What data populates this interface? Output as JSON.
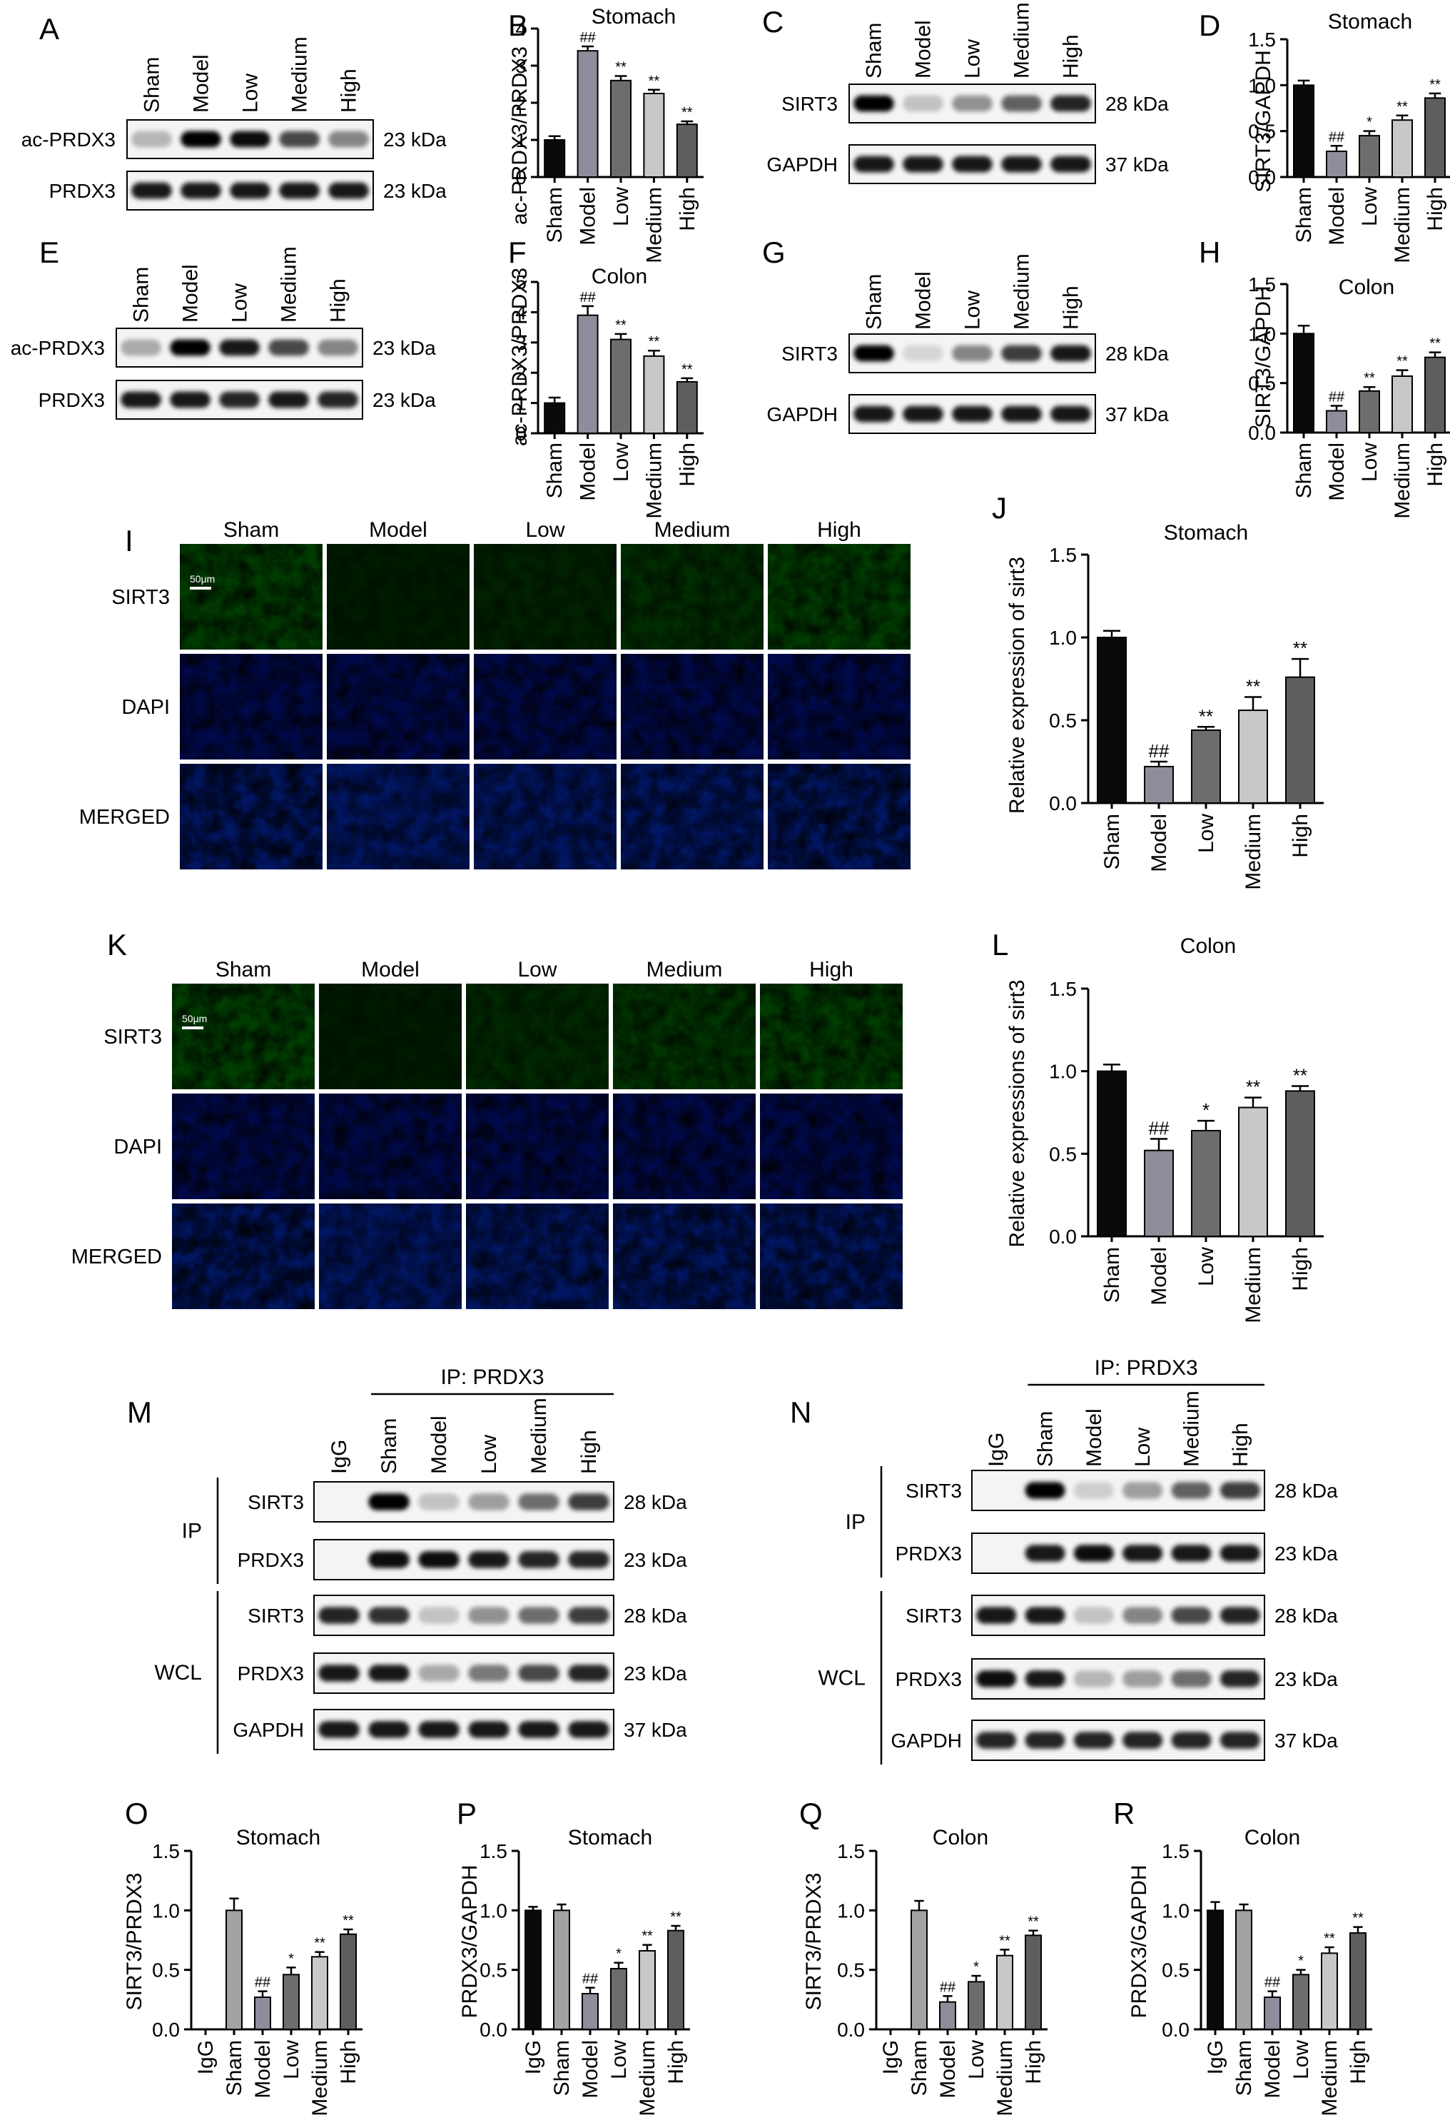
{
  "panel_letters": [
    "A",
    "B",
    "C",
    "D",
    "E",
    "F",
    "G",
    "H",
    "I",
    "J",
    "K",
    "L",
    "M",
    "N",
    "O",
    "P",
    "Q",
    "R"
  ],
  "group_labels": [
    "Sham",
    "Model",
    "Low",
    "Medium",
    "High"
  ],
  "ip_group_labels": [
    "IgG",
    "Sham",
    "Model",
    "Low",
    "Medium",
    "High"
  ],
  "colors": {
    "bar_fills": [
      "#0a0a0a",
      "#8d8d9b",
      "#6d6d6d",
      "#c8c8c8",
      "#5e5e5e"
    ],
    "bar_fills_ip": [
      "#0a0a0a",
      "#a2a2a2",
      "#8d8d9b",
      "#6d6d6d",
      "#c8c8c8",
      "#5e5e5e"
    ],
    "if_green": "#1f6b1a",
    "if_blue": "#1024a8"
  },
  "blots": {
    "A": {
      "rows": [
        {
          "label": "ac-PRDX3",
          "kda": "23 kDa",
          "intensities": [
            0.25,
            1,
            0.95,
            0.7,
            0.45
          ]
        },
        {
          "label": "PRDX3",
          "kda": "23 kDa",
          "intensities": [
            0.9,
            0.9,
            0.9,
            0.9,
            0.9
          ]
        }
      ]
    },
    "C": {
      "rows": [
        {
          "label": "SIRT3",
          "kda": "28 kDa",
          "intensities": [
            1,
            0.2,
            0.4,
            0.6,
            0.85
          ]
        },
        {
          "label": "GAPDH",
          "kda": "37 kDa",
          "intensities": [
            0.9,
            0.9,
            0.9,
            0.9,
            0.9
          ]
        }
      ]
    },
    "E": {
      "rows": [
        {
          "label": "ac-PRDX3",
          "kda": "23 kDa",
          "intensities": [
            0.3,
            1,
            0.9,
            0.7,
            0.45
          ]
        },
        {
          "label": "PRDX3",
          "kda": "23 kDa",
          "intensities": [
            0.9,
            0.9,
            0.85,
            0.9,
            0.85
          ]
        }
      ]
    },
    "G": {
      "rows": [
        {
          "label": "SIRT3",
          "kda": "28 kDa",
          "intensities": [
            1,
            0.12,
            0.45,
            0.75,
            0.9
          ]
        },
        {
          "label": "GAPDH",
          "kda": "37 kDa",
          "intensities": [
            0.9,
            0.9,
            0.9,
            0.9,
            0.9
          ]
        }
      ]
    },
    "M": {
      "ip_title": "IP: PRDX3",
      "ip_label": "IP",
      "wcl_label": "WCL",
      "rows": [
        {
          "label": "SIRT3",
          "kda": "28 kDa",
          "intensities": [
            0,
            1,
            0.2,
            0.35,
            0.55,
            0.75
          ]
        },
        {
          "label": "PRDX3",
          "kda": "23 kDa",
          "intensities": [
            0,
            0.95,
            0.95,
            0.9,
            0.85,
            0.85
          ]
        },
        {
          "label": "SIRT3",
          "kda": "28 kDa",
          "intensities": [
            0.85,
            0.8,
            0.2,
            0.4,
            0.55,
            0.75
          ]
        },
        {
          "label": "PRDX3",
          "kda": "23 kDa",
          "intensities": [
            0.9,
            0.9,
            0.3,
            0.5,
            0.7,
            0.85
          ]
        },
        {
          "label": "GAPDH",
          "kda": "37 kDa",
          "intensities": [
            0.9,
            0.9,
            0.9,
            0.9,
            0.9,
            0.9
          ]
        }
      ]
    },
    "N": {
      "ip_title": "IP: PRDX3",
      "ip_label": "IP",
      "wcl_label": "WCL",
      "rows": [
        {
          "label": "SIRT3",
          "kda": "28 kDa",
          "intensities": [
            0,
            1,
            0.15,
            0.35,
            0.6,
            0.75
          ]
        },
        {
          "label": "PRDX3",
          "kda": "23 kDa",
          "intensities": [
            0,
            0.9,
            0.95,
            0.9,
            0.9,
            0.9
          ]
        },
        {
          "label": "SIRT3",
          "kda": "28 kDa",
          "intensities": [
            0.9,
            0.9,
            0.2,
            0.45,
            0.7,
            0.85
          ]
        },
        {
          "label": "PRDX3",
          "kda": "23 kDa",
          "intensities": [
            0.95,
            0.9,
            0.25,
            0.35,
            0.55,
            0.85
          ]
        },
        {
          "label": "GAPDH",
          "kda": "37 kDa",
          "intensities": [
            0.85,
            0.85,
            0.85,
            0.85,
            0.85,
            0.85
          ]
        }
      ]
    }
  },
  "if_panels": {
    "I": {
      "rows": [
        "SIRT3",
        "DAPI",
        "MERGED"
      ],
      "green": [
        0.55,
        0.12,
        0.2,
        0.35,
        0.55
      ],
      "scale": "50μm"
    },
    "K": {
      "rows": [
        "SIRT3",
        "DAPI",
        "MERGED"
      ],
      "green": [
        0.6,
        0.1,
        0.3,
        0.45,
        0.55
      ],
      "scale": "50μm"
    }
  },
  "chart_data": [
    {
      "panel": "B",
      "type": "bar",
      "title": "Stomach",
      "ylabel": "ac-PRDX3/PRDX3",
      "categories": [
        "Sham",
        "Model",
        "Low",
        "Medium",
        "High"
      ],
      "values": [
        1.0,
        3.4,
        2.6,
        2.25,
        1.42
      ],
      "errors": [
        0.1,
        0.12,
        0.12,
        0.1,
        0.08
      ],
      "ylim": [
        0,
        4
      ],
      "yticks": [
        0,
        1,
        2,
        3,
        4
      ],
      "significance": [
        "",
        "##",
        "**",
        "**",
        "**"
      ]
    },
    {
      "panel": "D",
      "type": "bar",
      "title": "Stomach",
      "ylabel": "SIRT3/GAPDH",
      "categories": [
        "Sham",
        "Model",
        "Low",
        "Medium",
        "High"
      ],
      "values": [
        1.0,
        0.28,
        0.45,
        0.62,
        0.86
      ],
      "errors": [
        0.05,
        0.06,
        0.05,
        0.05,
        0.05
      ],
      "ylim": [
        0,
        1.5
      ],
      "yticks": [
        "0.0",
        "0.5",
        "1.0",
        "1.5"
      ],
      "significance": [
        "",
        "##",
        "*",
        "**",
        "**"
      ]
    },
    {
      "panel": "F",
      "type": "bar",
      "title": "Colon",
      "ylabel": "ac-PRDX3/PRDX3",
      "categories": [
        "Sham",
        "Model",
        "Low",
        "Medium",
        "High"
      ],
      "values": [
        1.0,
        3.9,
        3.1,
        2.55,
        1.7
      ],
      "errors": [
        0.18,
        0.3,
        0.18,
        0.18,
        0.12
      ],
      "ylim": [
        0,
        5
      ],
      "yticks": [
        0,
        1,
        2,
        3,
        4,
        5
      ],
      "significance": [
        "",
        "##",
        "**",
        "**",
        "**"
      ]
    },
    {
      "panel": "H",
      "type": "bar",
      "title": "Colon",
      "ylabel": "SIRT3/GAPDH",
      "categories": [
        "Sham",
        "Model",
        "Low",
        "Medium",
        "High"
      ],
      "values": [
        1.0,
        0.22,
        0.42,
        0.57,
        0.76
      ],
      "errors": [
        0.08,
        0.05,
        0.04,
        0.06,
        0.05
      ],
      "ylim": [
        0,
        1.5
      ],
      "yticks": [
        "0.0",
        "0.5",
        "1.0",
        "1.5"
      ],
      "significance": [
        "",
        "##",
        "**",
        "**",
        "**"
      ]
    },
    {
      "panel": "J",
      "type": "bar",
      "title": "Stomach",
      "ylabel": "Relative expression of sirt3",
      "categories": [
        "Sham",
        "Model",
        "Low",
        "Medium",
        "High"
      ],
      "values": [
        1.0,
        0.22,
        0.44,
        0.56,
        0.76
      ],
      "errors": [
        0.04,
        0.03,
        0.02,
        0.08,
        0.11
      ],
      "ylim": [
        0,
        1.5
      ],
      "yticks": [
        "0.0",
        "0.5",
        "1.0",
        "1.5"
      ],
      "significance": [
        "",
        "##",
        "**",
        "**",
        "**"
      ]
    },
    {
      "panel": "L",
      "type": "bar",
      "title": "Colon",
      "ylabel": "Relative expressions of sirt3",
      "categories": [
        "Sham",
        "Model",
        "Low",
        "Medium",
        "High"
      ],
      "values": [
        1.0,
        0.52,
        0.64,
        0.78,
        0.88
      ],
      "errors": [
        0.04,
        0.07,
        0.06,
        0.06,
        0.03
      ],
      "ylim": [
        0,
        1.5
      ],
      "yticks": [
        "0.0",
        "0.5",
        "1.0",
        "1.5"
      ],
      "significance": [
        "",
        "##",
        "*",
        "**",
        "**"
      ]
    },
    {
      "panel": "O",
      "type": "bar",
      "title": "Stomach",
      "ylabel": "SIRT3/PRDX3",
      "categories": [
        "IgG",
        "Sham",
        "Model",
        "Low",
        "Medium",
        "High"
      ],
      "values": [
        0,
        1.0,
        0.27,
        0.46,
        0.61,
        0.8
      ],
      "errors": [
        0,
        0.1,
        0.05,
        0.06,
        0.04,
        0.04
      ],
      "ylim": [
        0,
        1.5
      ],
      "yticks": [
        "0.0",
        "0.5",
        "1.0",
        "1.5"
      ],
      "significance": [
        "",
        "",
        "##",
        "*",
        "**",
        "**"
      ]
    },
    {
      "panel": "P",
      "type": "bar",
      "title": "Stomach",
      "ylabel": "PRDX3/GAPDH",
      "categories": [
        "IgG",
        "Sham",
        "Model",
        "Low",
        "Medium",
        "High"
      ],
      "values": [
        1.0,
        1.0,
        0.3,
        0.51,
        0.66,
        0.83
      ],
      "errors": [
        0.03,
        0.05,
        0.05,
        0.05,
        0.05,
        0.04
      ],
      "ylim": [
        0,
        1.5
      ],
      "yticks": [
        "0.0",
        "0.5",
        "1.0",
        "1.5"
      ],
      "significance": [
        "",
        "",
        "##",
        "*",
        "**",
        "**"
      ]
    },
    {
      "panel": "Q",
      "type": "bar",
      "title": "Colon",
      "ylabel": "SIRT3/PRDX3",
      "categories": [
        "IgG",
        "Sham",
        "Model",
        "Low",
        "Medium",
        "High"
      ],
      "values": [
        0,
        1.0,
        0.23,
        0.4,
        0.62,
        0.79
      ],
      "errors": [
        0,
        0.08,
        0.05,
        0.05,
        0.05,
        0.04
      ],
      "ylim": [
        0,
        1.5
      ],
      "yticks": [
        "0.0",
        "0.5",
        "1.0",
        "1.5"
      ],
      "significance": [
        "",
        "",
        "##",
        "*",
        "**",
        "**"
      ]
    },
    {
      "panel": "R",
      "type": "bar",
      "title": "Colon",
      "ylabel": "PRDX3/GAPDH",
      "categories": [
        "IgG",
        "Sham",
        "Model",
        "Low",
        "Medium",
        "High"
      ],
      "values": [
        1.0,
        1.0,
        0.27,
        0.46,
        0.64,
        0.81
      ],
      "errors": [
        0.07,
        0.05,
        0.05,
        0.04,
        0.05,
        0.05
      ],
      "ylim": [
        0,
        1.5
      ],
      "yticks": [
        "0.0",
        "0.5",
        "1.0",
        "1.5"
      ],
      "significance": [
        "",
        "",
        "##",
        "*",
        "**",
        "**"
      ]
    }
  ]
}
